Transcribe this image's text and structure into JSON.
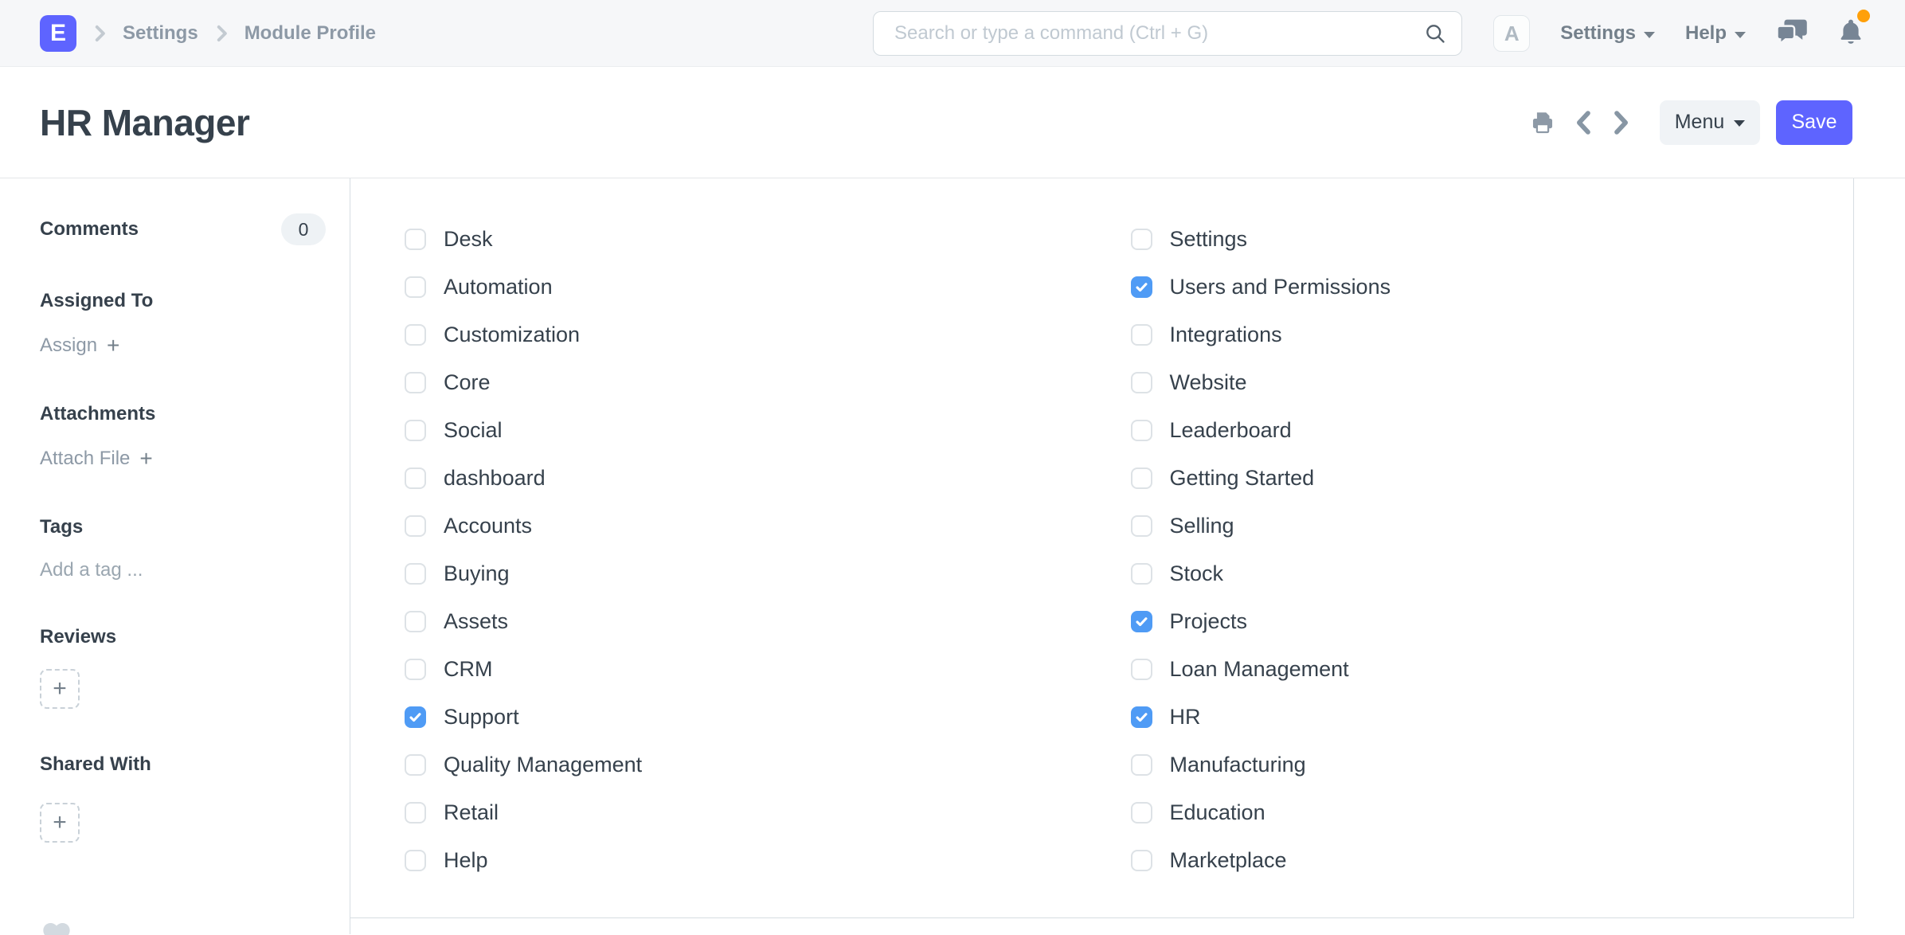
{
  "navbar": {
    "logo_letter": "E",
    "breadcrumbs": [
      "Settings",
      "Module Profile"
    ],
    "search": {
      "placeholder": "Search or type a command (Ctrl + G)"
    },
    "avatar_letter": "A",
    "settings_menu_label": "Settings",
    "help_menu_label": "Help"
  },
  "page": {
    "title": "HR Manager",
    "toolbar": {
      "menu_label": "Menu",
      "save_label": "Save"
    }
  },
  "sidebar": {
    "comments": {
      "label": "Comments",
      "count": "0"
    },
    "assigned_to": {
      "label": "Assigned To",
      "action": "Assign",
      "plus": "+"
    },
    "attachments": {
      "label": "Attachments",
      "action": "Attach File",
      "plus": "+"
    },
    "tags": {
      "label": "Tags",
      "placeholder": "Add a tag ..."
    },
    "reviews": {
      "label": "Reviews",
      "plus": "+"
    },
    "shared_with": {
      "label": "Shared With",
      "plus": "+"
    }
  },
  "modules": {
    "left": [
      {
        "label": "Desk",
        "checked": false
      },
      {
        "label": "Automation",
        "checked": false
      },
      {
        "label": "Customization",
        "checked": false
      },
      {
        "label": "Core",
        "checked": false
      },
      {
        "label": "Social",
        "checked": false
      },
      {
        "label": "dashboard",
        "checked": false
      },
      {
        "label": "Accounts",
        "checked": false
      },
      {
        "label": "Buying",
        "checked": false
      },
      {
        "label": "Assets",
        "checked": false
      },
      {
        "label": "CRM",
        "checked": false
      },
      {
        "label": "Support",
        "checked": true
      },
      {
        "label": "Quality Management",
        "checked": false
      },
      {
        "label": "Retail",
        "checked": false
      },
      {
        "label": "Help",
        "checked": false
      }
    ],
    "right": [
      {
        "label": "Settings",
        "checked": false
      },
      {
        "label": "Users and Permissions",
        "checked": true
      },
      {
        "label": "Integrations",
        "checked": false
      },
      {
        "label": "Website",
        "checked": false
      },
      {
        "label": "Leaderboard",
        "checked": false
      },
      {
        "label": "Getting Started",
        "checked": false
      },
      {
        "label": "Selling",
        "checked": false
      },
      {
        "label": "Stock",
        "checked": false
      },
      {
        "label": "Projects",
        "checked": true
      },
      {
        "label": "Loan Management",
        "checked": false
      },
      {
        "label": "HR",
        "checked": true
      },
      {
        "label": "Manufacturing",
        "checked": false
      },
      {
        "label": "Education",
        "checked": false
      },
      {
        "label": "Marketplace",
        "checked": false
      }
    ]
  },
  "colors": {
    "accent": "#5e64ff",
    "checkbox_checked": "#4f9bf5",
    "notification_dot": "#ffa00a"
  }
}
